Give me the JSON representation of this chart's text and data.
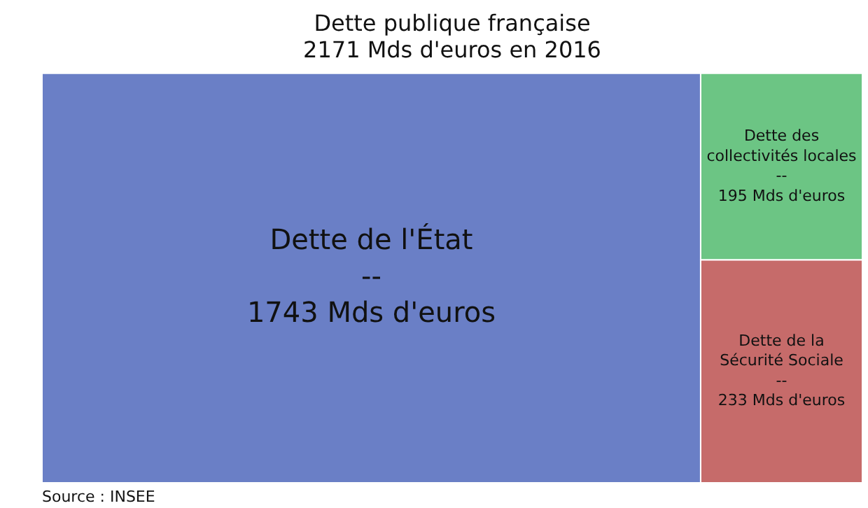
{
  "chart_data": {
    "type": "other",
    "title": [
      "Dette publique française",
      "2171 Mds d'euros en 2016"
    ],
    "categories": [
      "Dette de l'État",
      "Dette des collectivités locales",
      "Dette de la Sécurité Sociale"
    ],
    "values": [
      1743,
      195,
      233
    ],
    "value_labels": [
      "1743 Mds d'euros",
      "195 Mds d'euros",
      "233 Mds d'euros"
    ],
    "colors": [
      "#6a7fc6",
      "#6cc584",
      "#c66b6a"
    ],
    "annotations": [
      "--",
      "Source : INSEE"
    ]
  }
}
